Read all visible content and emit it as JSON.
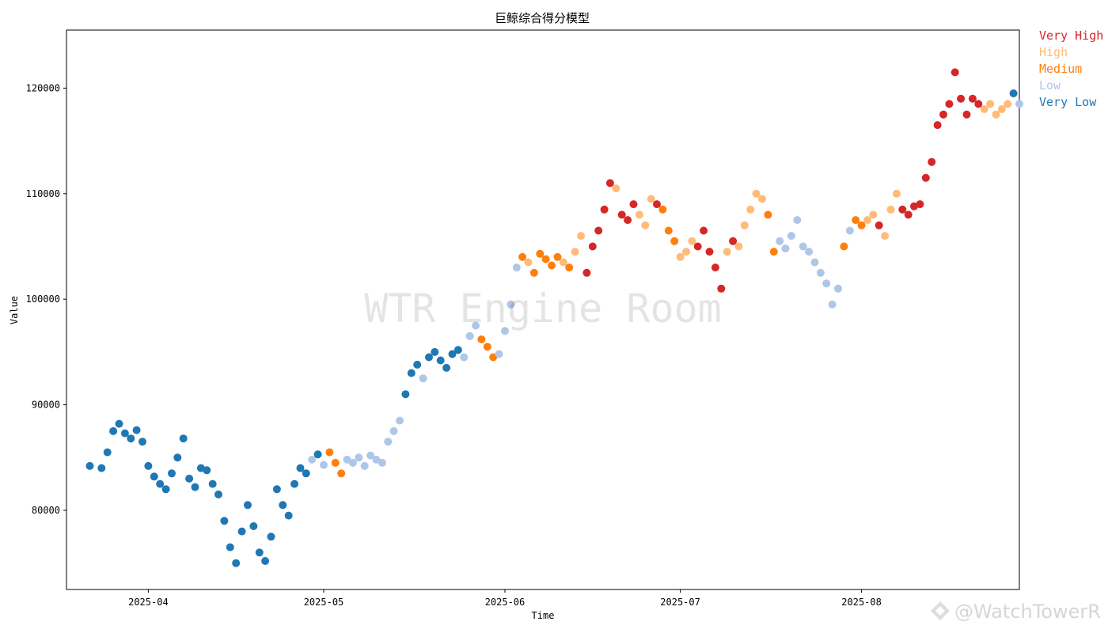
{
  "chart_data": {
    "type": "scatter",
    "title": "巨鲸综合得分模型",
    "xlabel": "Time",
    "ylabel": "Value",
    "x_ticks": [
      "2025-04",
      "2025-05",
      "2025-06",
      "2025-07",
      "2025-08"
    ],
    "y_ticks": [
      80000,
      90000,
      100000,
      110000,
      120000
    ],
    "xlim": [
      "2025-03-18",
      "2025-08-28"
    ],
    "ylim": [
      72500,
      125500
    ],
    "grid": false,
    "legend_position": "right-outside-top",
    "watermark": "WTR Engine Room",
    "series": [
      {
        "name": "Very High",
        "color": "#d62728"
      },
      {
        "name": "High",
        "color": "#ffbb78"
      },
      {
        "name": "Medium",
        "color": "#ff7f0e"
      },
      {
        "name": "Low",
        "color": "#aec7e8"
      },
      {
        "name": "Very Low",
        "color": "#1f77b4"
      }
    ],
    "points": [
      [
        "2025-03-22",
        84200,
        4
      ],
      [
        "2025-03-24",
        84000,
        4
      ],
      [
        "2025-03-25",
        85500,
        4
      ],
      [
        "2025-03-26",
        87500,
        4
      ],
      [
        "2025-03-27",
        88200,
        4
      ],
      [
        "2025-03-28",
        87300,
        4
      ],
      [
        "2025-03-29",
        86800,
        4
      ],
      [
        "2025-03-30",
        87600,
        4
      ],
      [
        "2025-03-31",
        86500,
        4
      ],
      [
        "2025-04-01",
        84200,
        4
      ],
      [
        "2025-04-02",
        83200,
        4
      ],
      [
        "2025-04-03",
        82500,
        4
      ],
      [
        "2025-04-04",
        82000,
        4
      ],
      [
        "2025-04-05",
        83500,
        4
      ],
      [
        "2025-04-06",
        85000,
        4
      ],
      [
        "2025-04-07",
        86800,
        4
      ],
      [
        "2025-04-08",
        83000,
        4
      ],
      [
        "2025-04-09",
        82200,
        4
      ],
      [
        "2025-04-10",
        84000,
        4
      ],
      [
        "2025-04-11",
        83800,
        4
      ],
      [
        "2025-04-12",
        82500,
        4
      ],
      [
        "2025-04-13",
        81500,
        4
      ],
      [
        "2025-04-14",
        79000,
        4
      ],
      [
        "2025-04-15",
        76500,
        4
      ],
      [
        "2025-04-16",
        75000,
        4
      ],
      [
        "2025-04-17",
        78000,
        4
      ],
      [
        "2025-04-18",
        80500,
        4
      ],
      [
        "2025-04-19",
        78500,
        4
      ],
      [
        "2025-04-20",
        76000,
        4
      ],
      [
        "2025-04-21",
        75200,
        4
      ],
      [
        "2025-04-22",
        77500,
        4
      ],
      [
        "2025-04-23",
        82000,
        4
      ],
      [
        "2025-04-24",
        80500,
        4
      ],
      [
        "2025-04-25",
        79500,
        4
      ],
      [
        "2025-04-26",
        82500,
        4
      ],
      [
        "2025-04-27",
        84000,
        4
      ],
      [
        "2025-04-28",
        83500,
        4
      ],
      [
        "2025-04-29",
        84800,
        3
      ],
      [
        "2025-04-30",
        85300,
        4
      ],
      [
        "2025-05-01",
        84300,
        3
      ],
      [
        "2025-05-02",
        85500,
        2
      ],
      [
        "2025-05-03",
        84500,
        2
      ],
      [
        "2025-05-04",
        83500,
        2
      ],
      [
        "2025-05-05",
        84800,
        3
      ],
      [
        "2025-05-06",
        84500,
        3
      ],
      [
        "2025-05-07",
        85000,
        3
      ],
      [
        "2025-05-08",
        84200,
        3
      ],
      [
        "2025-05-09",
        85200,
        3
      ],
      [
        "2025-05-10",
        84800,
        3
      ],
      [
        "2025-05-11",
        84500,
        3
      ],
      [
        "2025-05-12",
        86500,
        3
      ],
      [
        "2025-05-13",
        87500,
        3
      ],
      [
        "2025-05-14",
        88500,
        3
      ],
      [
        "2025-05-15",
        91000,
        4
      ],
      [
        "2025-05-16",
        93000,
        4
      ],
      [
        "2025-05-17",
        93800,
        4
      ],
      [
        "2025-05-18",
        92500,
        3
      ],
      [
        "2025-05-19",
        94500,
        4
      ],
      [
        "2025-05-20",
        95000,
        4
      ],
      [
        "2025-05-21",
        94200,
        4
      ],
      [
        "2025-05-22",
        93500,
        4
      ],
      [
        "2025-05-23",
        94800,
        4
      ],
      [
        "2025-05-24",
        95200,
        4
      ],
      [
        "2025-05-25",
        94500,
        3
      ],
      [
        "2025-05-26",
        96500,
        3
      ],
      [
        "2025-05-27",
        97500,
        3
      ],
      [
        "2025-05-28",
        96200,
        2
      ],
      [
        "2025-05-29",
        95500,
        2
      ],
      [
        "2025-05-30",
        94500,
        2
      ],
      [
        "2025-05-31",
        94800,
        3
      ],
      [
        "2025-06-01",
        97000,
        3
      ],
      [
        "2025-06-02",
        99500,
        3
      ],
      [
        "2025-06-03",
        103000,
        3
      ],
      [
        "2025-06-04",
        104000,
        2
      ],
      [
        "2025-06-05",
        103500,
        1
      ],
      [
        "2025-06-06",
        102500,
        2
      ],
      [
        "2025-06-07",
        104300,
        2
      ],
      [
        "2025-06-08",
        103800,
        2
      ],
      [
        "2025-06-09",
        103200,
        2
      ],
      [
        "2025-06-10",
        104000,
        2
      ],
      [
        "2025-06-11",
        103500,
        1
      ],
      [
        "2025-06-12",
        103000,
        2
      ],
      [
        "2025-06-13",
        104500,
        1
      ],
      [
        "2025-06-14",
        106000,
        1
      ],
      [
        "2025-06-15",
        102500,
        0
      ],
      [
        "2025-06-16",
        105000,
        0
      ],
      [
        "2025-06-17",
        106500,
        0
      ],
      [
        "2025-06-18",
        108500,
        0
      ],
      [
        "2025-06-19",
        111000,
        0
      ],
      [
        "2025-06-20",
        110500,
        1
      ],
      [
        "2025-06-21",
        108000,
        0
      ],
      [
        "2025-06-22",
        107500,
        0
      ],
      [
        "2025-06-23",
        109000,
        0
      ],
      [
        "2025-06-24",
        108000,
        1
      ],
      [
        "2025-06-25",
        107000,
        1
      ],
      [
        "2025-06-26",
        109500,
        1
      ],
      [
        "2025-06-27",
        109000,
        0
      ],
      [
        "2025-06-28",
        108500,
        2
      ],
      [
        "2025-06-29",
        106500,
        2
      ],
      [
        "2025-06-30",
        105500,
        2
      ],
      [
        "2025-07-01",
        104000,
        1
      ],
      [
        "2025-07-02",
        104500,
        1
      ],
      [
        "2025-07-03",
        105500,
        1
      ],
      [
        "2025-07-04",
        105000,
        0
      ],
      [
        "2025-07-05",
        106500,
        0
      ],
      [
        "2025-07-06",
        104500,
        0
      ],
      [
        "2025-07-07",
        103000,
        0
      ],
      [
        "2025-07-08",
        101000,
        0
      ],
      [
        "2025-07-09",
        104500,
        1
      ],
      [
        "2025-07-10",
        105500,
        0
      ],
      [
        "2025-07-11",
        105000,
        1
      ],
      [
        "2025-07-12",
        107000,
        1
      ],
      [
        "2025-07-13",
        108500,
        1
      ],
      [
        "2025-07-14",
        110000,
        1
      ],
      [
        "2025-07-15",
        109500,
        1
      ],
      [
        "2025-07-16",
        108000,
        2
      ],
      [
        "2025-07-17",
        104500,
        2
      ],
      [
        "2025-07-18",
        105500,
        3
      ],
      [
        "2025-07-19",
        104800,
        3
      ],
      [
        "2025-07-20",
        106000,
        3
      ],
      [
        "2025-07-21",
        107500,
        3
      ],
      [
        "2025-07-22",
        105000,
        3
      ],
      [
        "2025-07-23",
        104500,
        3
      ],
      [
        "2025-07-24",
        103500,
        3
      ],
      [
        "2025-07-25",
        102500,
        3
      ],
      [
        "2025-07-26",
        101500,
        3
      ],
      [
        "2025-07-27",
        99500,
        3
      ],
      [
        "2025-07-28",
        101000,
        3
      ],
      [
        "2025-07-29",
        105000,
        2
      ],
      [
        "2025-07-30",
        106500,
        3
      ],
      [
        "2025-07-31",
        107500,
        2
      ],
      [
        "2025-08-01",
        107000,
        2
      ],
      [
        "2025-08-02",
        107500,
        1
      ],
      [
        "2025-08-03",
        108000,
        1
      ],
      [
        "2025-08-04",
        107000,
        0
      ],
      [
        "2025-08-05",
        106000,
        1
      ],
      [
        "2025-08-06",
        108500,
        1
      ],
      [
        "2025-08-07",
        110000,
        1
      ],
      [
        "2025-08-08",
        108500,
        0
      ],
      [
        "2025-08-09",
        108000,
        0
      ],
      [
        "2025-08-10",
        108800,
        0
      ],
      [
        "2025-08-11",
        109000,
        0
      ],
      [
        "2025-08-12",
        111500,
        0
      ],
      [
        "2025-08-13",
        113000,
        0
      ],
      [
        "2025-08-14",
        116500,
        0
      ],
      [
        "2025-08-15",
        117500,
        0
      ],
      [
        "2025-08-16",
        118500,
        0
      ],
      [
        "2025-08-17",
        121500,
        0
      ],
      [
        "2025-08-18",
        119000,
        0
      ],
      [
        "2025-08-19",
        117500,
        0
      ],
      [
        "2025-08-20",
        119000,
        0
      ],
      [
        "2025-08-21",
        118500,
        0
      ],
      [
        "2025-08-22",
        118000,
        1
      ],
      [
        "2025-08-23",
        118500,
        1
      ],
      [
        "2025-08-24",
        117500,
        1
      ],
      [
        "2025-08-25",
        118000,
        1
      ],
      [
        "2025-08-26",
        118500,
        1
      ],
      [
        "2025-08-27",
        119500,
        4
      ],
      [
        "2025-08-28",
        118500,
        3
      ]
    ],
    "legend_entries": [
      "Very High",
      "High",
      "Medium",
      "Low",
      "Very Low"
    ]
  },
  "brand_watermark": "@WatchTowerR"
}
